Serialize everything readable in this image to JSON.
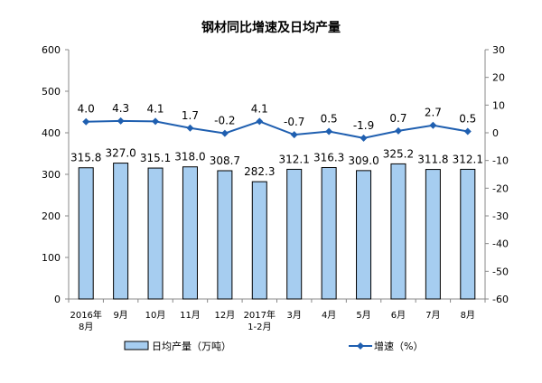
{
  "chart_data": {
    "type": "bar+line",
    "title": "钢材同比增速及日均产量",
    "categories": [
      "2016年\n8月",
      "9月",
      "10月",
      "11月",
      "12月",
      "2017年\n1-2月",
      "3月",
      "4月",
      "5月",
      "6月",
      "7月",
      "8月"
    ],
    "series": [
      {
        "name": "日均产量（万吨）",
        "type": "bar",
        "axis": "left",
        "color": "#a6cdf0",
        "values": [
          315.8,
          327.0,
          315.1,
          318.0,
          308.7,
          282.3,
          312.1,
          316.3,
          309.0,
          325.2,
          311.8,
          312.1
        ]
      },
      {
        "name": "增速（%）",
        "type": "line",
        "axis": "right",
        "color": "#1f5fb0",
        "values": [
          4.0,
          4.3,
          4.1,
          1.7,
          -0.2,
          4.1,
          -0.7,
          0.5,
          -1.9,
          0.7,
          2.7,
          0.5
        ]
      }
    ],
    "ylim_left": [
      0,
      600
    ],
    "yticks_left": [
      0,
      100,
      200,
      300,
      400,
      500,
      600
    ],
    "ylim_right": [
      -60,
      30
    ],
    "yticks_right": [
      -60,
      -50,
      -40,
      -30,
      -20,
      -10,
      0,
      10,
      20,
      30
    ],
    "grid": false,
    "legend_position": "bottom"
  }
}
